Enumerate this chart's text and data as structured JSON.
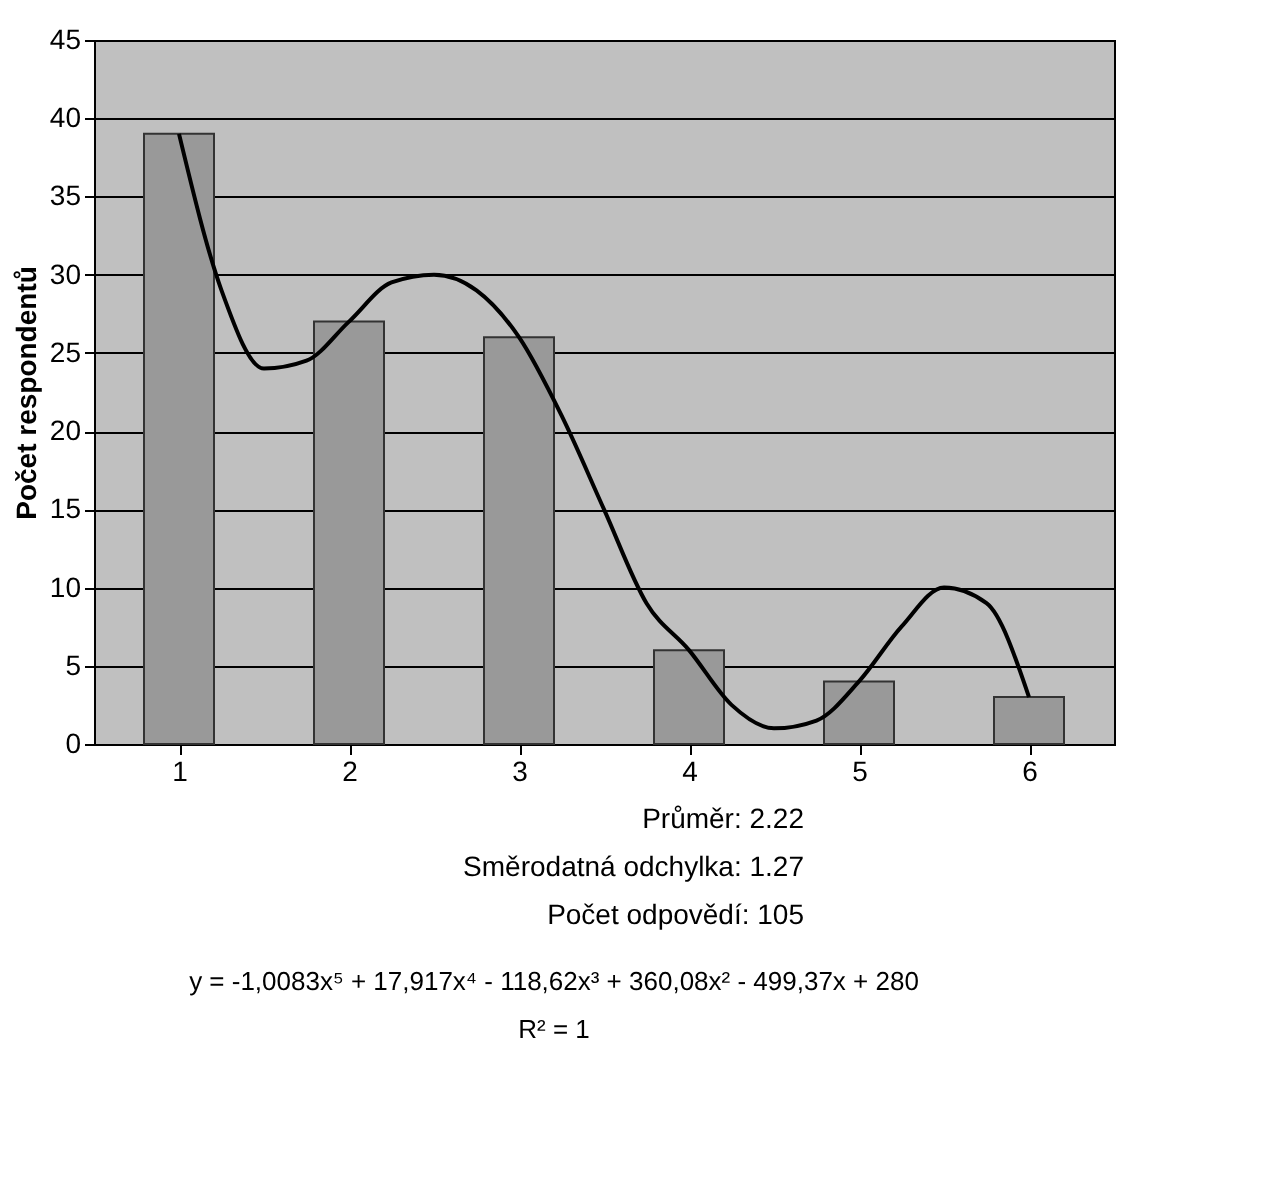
{
  "chart_data": {
    "type": "bar",
    "ylabel": "Počet respondentů",
    "x": [
      1,
      2,
      3,
      4,
      5,
      6
    ],
    "xlim": [
      0.5,
      6.5
    ],
    "xticks": [
      1,
      2,
      3,
      4,
      5,
      6
    ],
    "series": [
      {
        "type": "bar",
        "color": "#999999",
        "values": [
          39,
          27,
          26,
          6,
          4,
          3
        ]
      },
      {
        "type": "line",
        "color": "#000000",
        "x": [
          1,
          1.25,
          1.5,
          1.75,
          2,
          2.25,
          2.5,
          2.75,
          3,
          3.25,
          3.5,
          3.75,
          4,
          4.25,
          4.5,
          4.75,
          5,
          5.25,
          5.5,
          5.75,
          6
        ],
        "values": [
          39,
          29,
          24,
          24.5,
          27,
          29.5,
          30,
          29,
          26,
          21,
          15,
          9,
          6,
          2.5,
          1,
          1.5,
          4,
          7.5,
          10,
          9,
          3
        ]
      }
    ],
    "ylim": [
      0,
      45
    ],
    "yticks": [
      0,
      5,
      10,
      15,
      20,
      25,
      30,
      35,
      40,
      45
    ],
    "grid": "y",
    "annotations": [
      "Průměr: 2.22",
      "Směrodatná odchylka: 1.27",
      "Počet odpovědí: 105",
      "y = -1,0083x⁵ + 17,917x⁴ - 118,62x³ + 360,08x² - 499,37x + 280",
      "R² = 1"
    ]
  }
}
